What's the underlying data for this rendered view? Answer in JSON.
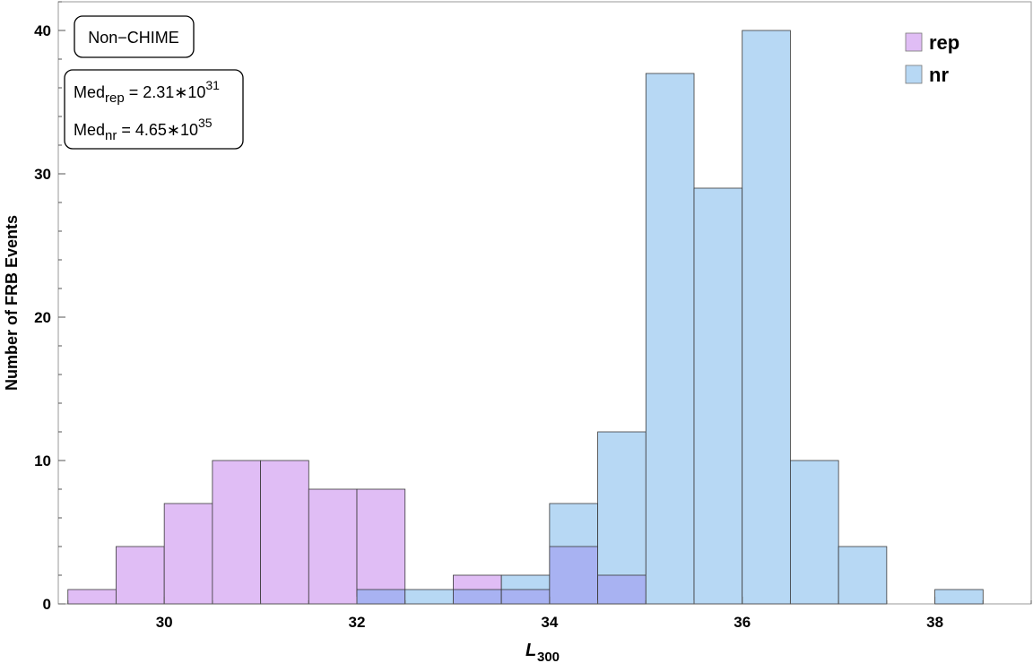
{
  "chart_data": {
    "type": "bar",
    "bin_edges": [
      29.0,
      29.5,
      30.0,
      30.5,
      31.0,
      31.5,
      32.0,
      32.5,
      33.0,
      33.5,
      34.0,
      34.5,
      35.0,
      35.5,
      36.0,
      36.5,
      37.0,
      37.5,
      38.0,
      38.5
    ],
    "series": [
      {
        "name": "rep",
        "color": "#e0bdf5",
        "values": [
          1,
          4,
          7,
          10,
          10,
          8,
          8,
          0,
          2,
          1,
          4,
          2,
          0,
          0,
          0,
          0,
          0,
          0,
          0
        ]
      },
      {
        "name": "nr",
        "color": "#b7d8f4",
        "values": [
          0,
          0,
          0,
          0,
          0,
          0,
          1,
          1,
          1,
          2,
          7,
          12,
          37,
          29,
          40,
          10,
          4,
          0,
          1
        ]
      }
    ],
    "overlap_color": "#a8b2f2",
    "xlim": [
      28.9,
      39.0
    ],
    "ylim": [
      0,
      42
    ],
    "xticks": [
      30,
      32,
      34,
      36,
      38
    ],
    "yticks": [
      0,
      10,
      20,
      30,
      40
    ],
    "xlabel_main": "L",
    "xlabel_sub": "300",
    "ylabel": "Number of FRB Events",
    "annotation_label": "Non−CHIME",
    "median_rep": {
      "base": "Med",
      "sub": "rep",
      "value": " = 2.31∗10",
      "exp": "31"
    },
    "median_nr": {
      "base": "Med",
      "sub": "nr",
      "value": " = 4.65∗10",
      "exp": "35"
    },
    "legend_position": "top-right",
    "legend_labels": [
      "rep",
      "nr"
    ]
  }
}
